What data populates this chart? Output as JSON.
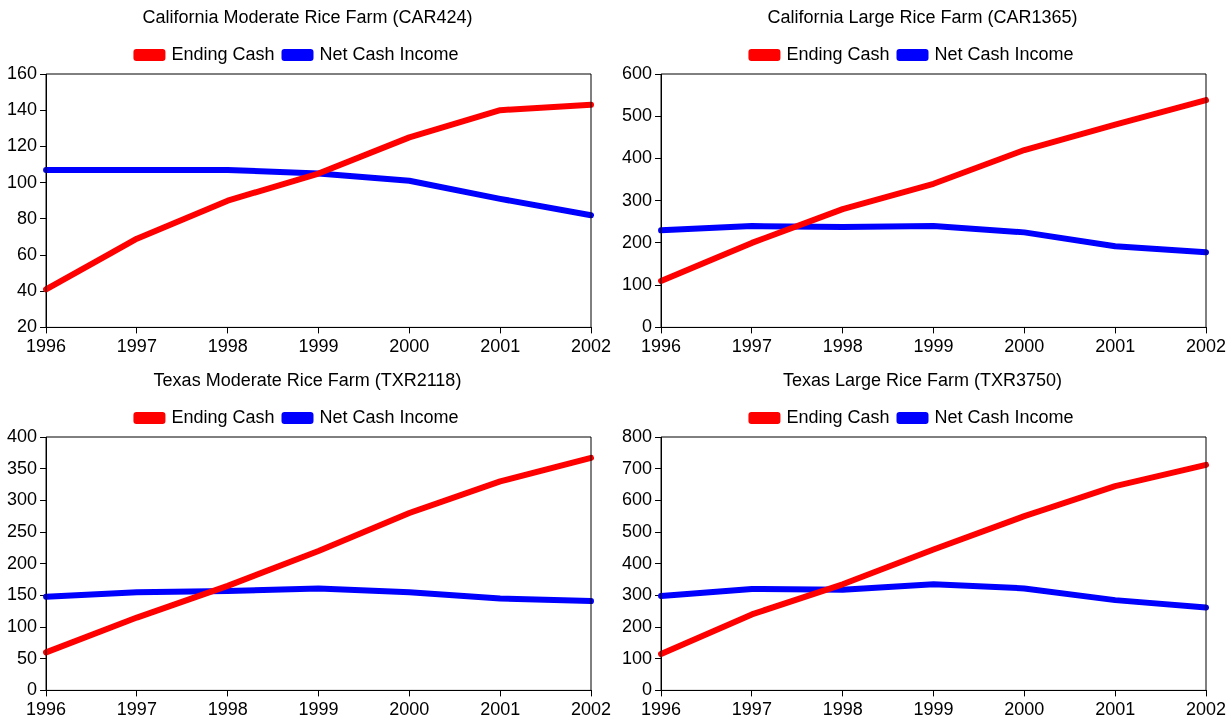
{
  "chart_data": [
    {
      "type": "line",
      "title": "California Moderate Rice Farm (CAR424)",
      "categories": [
        "1996",
        "1997",
        "1998",
        "1999",
        "2000",
        "2001",
        "2002"
      ],
      "series": [
        {
          "name": "Ending Cash",
          "color": "#ff0000",
          "values": [
            41,
            69,
            90,
            105,
            125,
            140,
            143
          ]
        },
        {
          "name": "Net Cash Income",
          "color": "#0000ff",
          "values": [
            107,
            107,
            107,
            105,
            101,
            91,
            82
          ]
        }
      ],
      "ylim": [
        20,
        160
      ],
      "yticks": [
        20,
        40,
        60,
        80,
        100,
        120,
        140,
        160
      ],
      "grid": false,
      "legend": "top",
      "marker": "none"
    },
    {
      "type": "line",
      "title": "California Large Rice Farm (CAR1365)",
      "categories": [
        "1996",
        "1997",
        "1998",
        "1999",
        "2000",
        "2001",
        "2002"
      ],
      "series": [
        {
          "name": "Ending Cash",
          "color": "#ff0000",
          "values": [
            110,
            200,
            280,
            340,
            420,
            480,
            538
          ]
        },
        {
          "name": "Net Cash Income",
          "color": "#0000ff",
          "values": [
            230,
            240,
            238,
            240,
            225,
            192,
            178
          ]
        }
      ],
      "ylim": [
        0,
        600
      ],
      "yticks": [
        0,
        100,
        200,
        300,
        400,
        500,
        600
      ],
      "grid": false,
      "legend": "top",
      "marker": "none"
    },
    {
      "type": "line",
      "title": "Texas Moderate Rice Farm (TXR2118)",
      "categories": [
        "1996",
        "1997",
        "1998",
        "1999",
        "2000",
        "2001",
        "2002"
      ],
      "series": [
        {
          "name": "Ending Cash",
          "color": "#ff0000",
          "values": [
            60,
            115,
            165,
            220,
            280,
            330,
            367
          ]
        },
        {
          "name": "Net Cash Income",
          "color": "#0000ff",
          "values": [
            148,
            155,
            157,
            161,
            155,
            145,
            141
          ]
        }
      ],
      "ylim": [
        0,
        400
      ],
      "yticks": [
        0,
        50,
        100,
        150,
        200,
        250,
        300,
        350,
        400
      ],
      "grid": false,
      "legend": "top",
      "marker": "none"
    },
    {
      "type": "line",
      "title": "Texas Large Rice Farm (TXR3750)",
      "categories": [
        "1996",
        "1997",
        "1998",
        "1999",
        "2000",
        "2001",
        "2002"
      ],
      "series": [
        {
          "name": "Ending Cash",
          "color": "#ff0000",
          "values": [
            115,
            240,
            335,
            445,
            550,
            645,
            712
          ]
        },
        {
          "name": "Net Cash Income",
          "color": "#0000ff",
          "values": [
            298,
            320,
            318,
            335,
            322,
            285,
            262
          ]
        }
      ],
      "ylim": [
        0,
        800
      ],
      "yticks": [
        0,
        100,
        200,
        300,
        400,
        500,
        600,
        700,
        800
      ],
      "grid": false,
      "legend": "top",
      "marker": "none"
    }
  ]
}
